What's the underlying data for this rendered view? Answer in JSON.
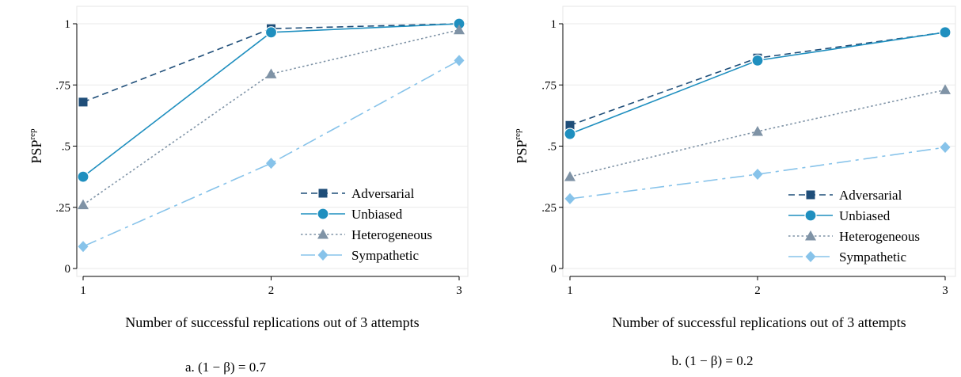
{
  "chart_data": [
    {
      "type": "line",
      "caption": "a. (1 − β) = 0.7",
      "xlabel": "Number of successful replications out of 3 attempts",
      "ylabel": "PSP",
      "ylabel_superscript": "rep",
      "x": [
        1,
        2,
        3
      ],
      "x_tick_labels": [
        "1",
        "2",
        "3"
      ],
      "y_ticks": [
        0,
        0.25,
        0.5,
        0.75,
        1
      ],
      "y_tick_labels": [
        "0",
        ".25",
        ".5",
        ".75",
        "1"
      ],
      "xlim": [
        1,
        3
      ],
      "ylim": [
        0,
        1
      ],
      "grid": true,
      "legend_position": "bottom-right",
      "series": [
        {
          "name": "Adversarial",
          "values": [
            0.68,
            0.98,
            1.0
          ],
          "color": "#1f4e79",
          "marker": "square",
          "dash": "dashed"
        },
        {
          "name": "Unbiased",
          "values": [
            0.375,
            0.965,
            1.0
          ],
          "color": "#1f8fbf",
          "marker": "circle",
          "dash": "solid"
        },
        {
          "name": "Heterogeneous",
          "values": [
            0.26,
            0.795,
            0.975
          ],
          "color": "#7f93a6",
          "marker": "triangle",
          "dash": "dotted"
        },
        {
          "name": "Sympathetic",
          "values": [
            0.09,
            0.43,
            0.85
          ],
          "color": "#87c3ea",
          "marker": "diamond",
          "dash": "longdash"
        }
      ]
    },
    {
      "type": "line",
      "caption": "b. (1 − β) = 0.2",
      "xlabel": "Number of successful replications out of 3 attempts",
      "ylabel": "PSP",
      "ylabel_superscript": "rep",
      "x": [
        1,
        2,
        3
      ],
      "x_tick_labels": [
        "1",
        "2",
        "3"
      ],
      "y_ticks": [
        0,
        0.25,
        0.5,
        0.75,
        1
      ],
      "y_tick_labels": [
        "0",
        ".25",
        ".5",
        ".75",
        "1"
      ],
      "xlim": [
        1,
        3
      ],
      "ylim": [
        0,
        1
      ],
      "grid": true,
      "legend_position": "bottom-right",
      "series": [
        {
          "name": "Adversarial",
          "values": [
            0.585,
            0.86,
            0.965
          ],
          "color": "#1f4e79",
          "marker": "square",
          "dash": "dashed"
        },
        {
          "name": "Unbiased",
          "values": [
            0.55,
            0.85,
            0.965
          ],
          "color": "#1f8fbf",
          "marker": "circle",
          "dash": "solid"
        },
        {
          "name": "Heterogeneous",
          "values": [
            0.375,
            0.56,
            0.73
          ],
          "color": "#7f93a6",
          "marker": "triangle",
          "dash": "dotted"
        },
        {
          "name": "Sympathetic",
          "values": [
            0.285,
            0.385,
            0.495
          ],
          "color": "#87c3ea",
          "marker": "diamond",
          "dash": "longdash"
        }
      ]
    }
  ]
}
